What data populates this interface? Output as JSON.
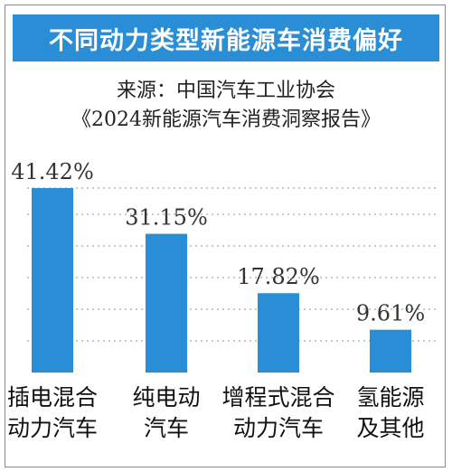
{
  "chart_data": {
    "type": "bar",
    "title": "不同动力类型新能源车消费偏好",
    "source_lines": [
      "来源：中国汽车工业协会",
      "《2024新能源汽车消费洞察报告》"
    ],
    "categories": [
      [
        "插电混合",
        "动力汽车"
      ],
      [
        "纯电动",
        "汽车"
      ],
      [
        "增程式混合",
        "动力汽车"
      ],
      [
        "氢能源",
        "及其他"
      ]
    ],
    "values": [
      41.42,
      31.15,
      17.82,
      9.61
    ],
    "value_labels": [
      "41.42%",
      "31.15%",
      "17.82%",
      "9.61%"
    ],
    "ylim": [
      0,
      41.42
    ],
    "grid": true,
    "colors": {
      "bar": "#2a8ed6",
      "banner": "#2a8ed6",
      "grid": "#b5b5b5"
    }
  }
}
